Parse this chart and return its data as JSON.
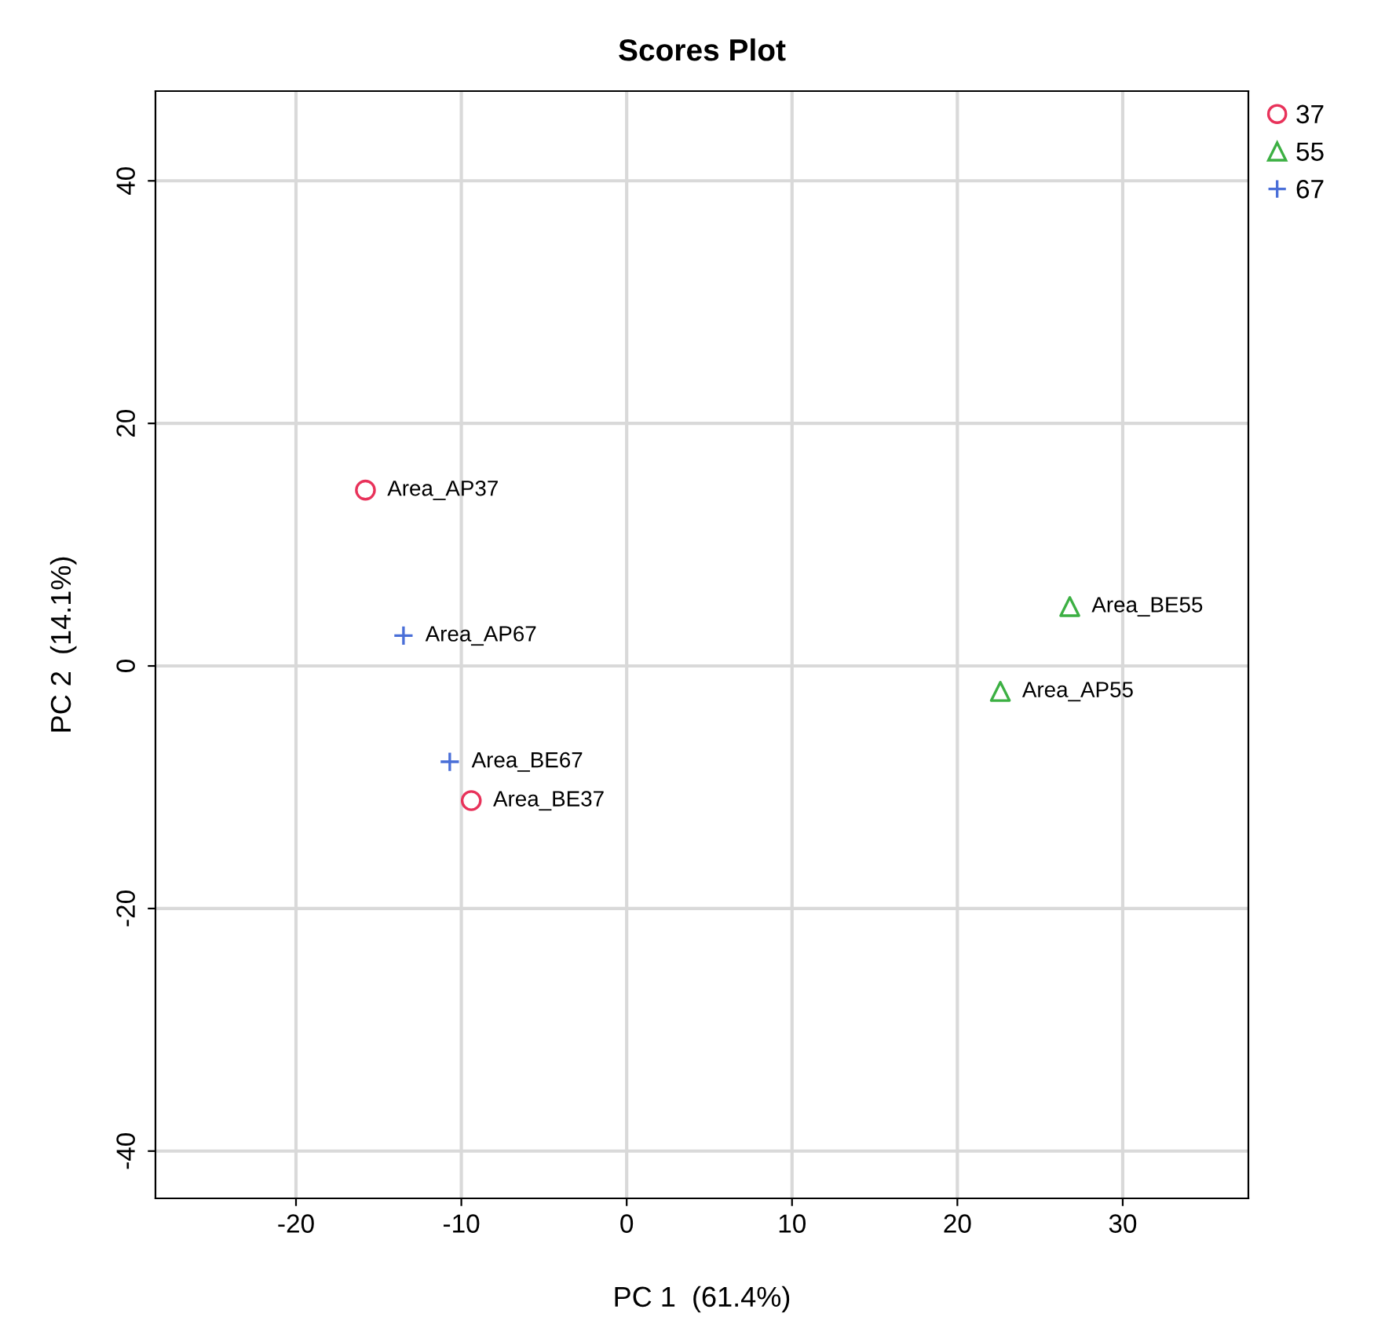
{
  "chart_data": {
    "type": "scatter",
    "title": "Scores Plot",
    "xlabel": "PC 1  (61.4%)",
    "ylabel": "PC 2  (14.1%)",
    "xlim": [
      -28.5,
      37.6
    ],
    "ylim": [
      -43.9,
      47.4
    ],
    "xticks": [
      -20,
      -10,
      0,
      10,
      20,
      30
    ],
    "yticks": [
      -40,
      -20,
      0,
      20,
      40
    ],
    "grid": true,
    "legend": "top right",
    "series": [
      {
        "name": "37",
        "color": "#e8325a",
        "marker": "circle",
        "x": [
          -15.8,
          -9.4
        ],
        "values": [
          14.5,
          -11.1
        ]
      },
      {
        "name": "55",
        "color": "#3cb043",
        "marker": "triangle",
        "x": [
          26.8,
          22.6
        ],
        "values": [
          4.9,
          -2.1
        ]
      },
      {
        "name": "67",
        "color": "#4a6fd8",
        "marker": "cross",
        "x": [
          -13.5,
          -10.7
        ],
        "values": [
          2.5,
          -7.9
        ]
      }
    ],
    "annotations": [
      {
        "text": "Area_AP37",
        "x": -15.8,
        "y": 14.5
      },
      {
        "text": "Area_BE37",
        "x": -9.4,
        "y": -11.1
      },
      {
        "text": "Area_BE55",
        "x": 26.8,
        "y": 4.9
      },
      {
        "text": "Area_AP55",
        "x": 22.6,
        "y": -2.1
      },
      {
        "text": "Area_AP67",
        "x": -13.5,
        "y": 2.5
      },
      {
        "text": "Area_BE67",
        "x": -10.7,
        "y": -7.9
      }
    ]
  }
}
